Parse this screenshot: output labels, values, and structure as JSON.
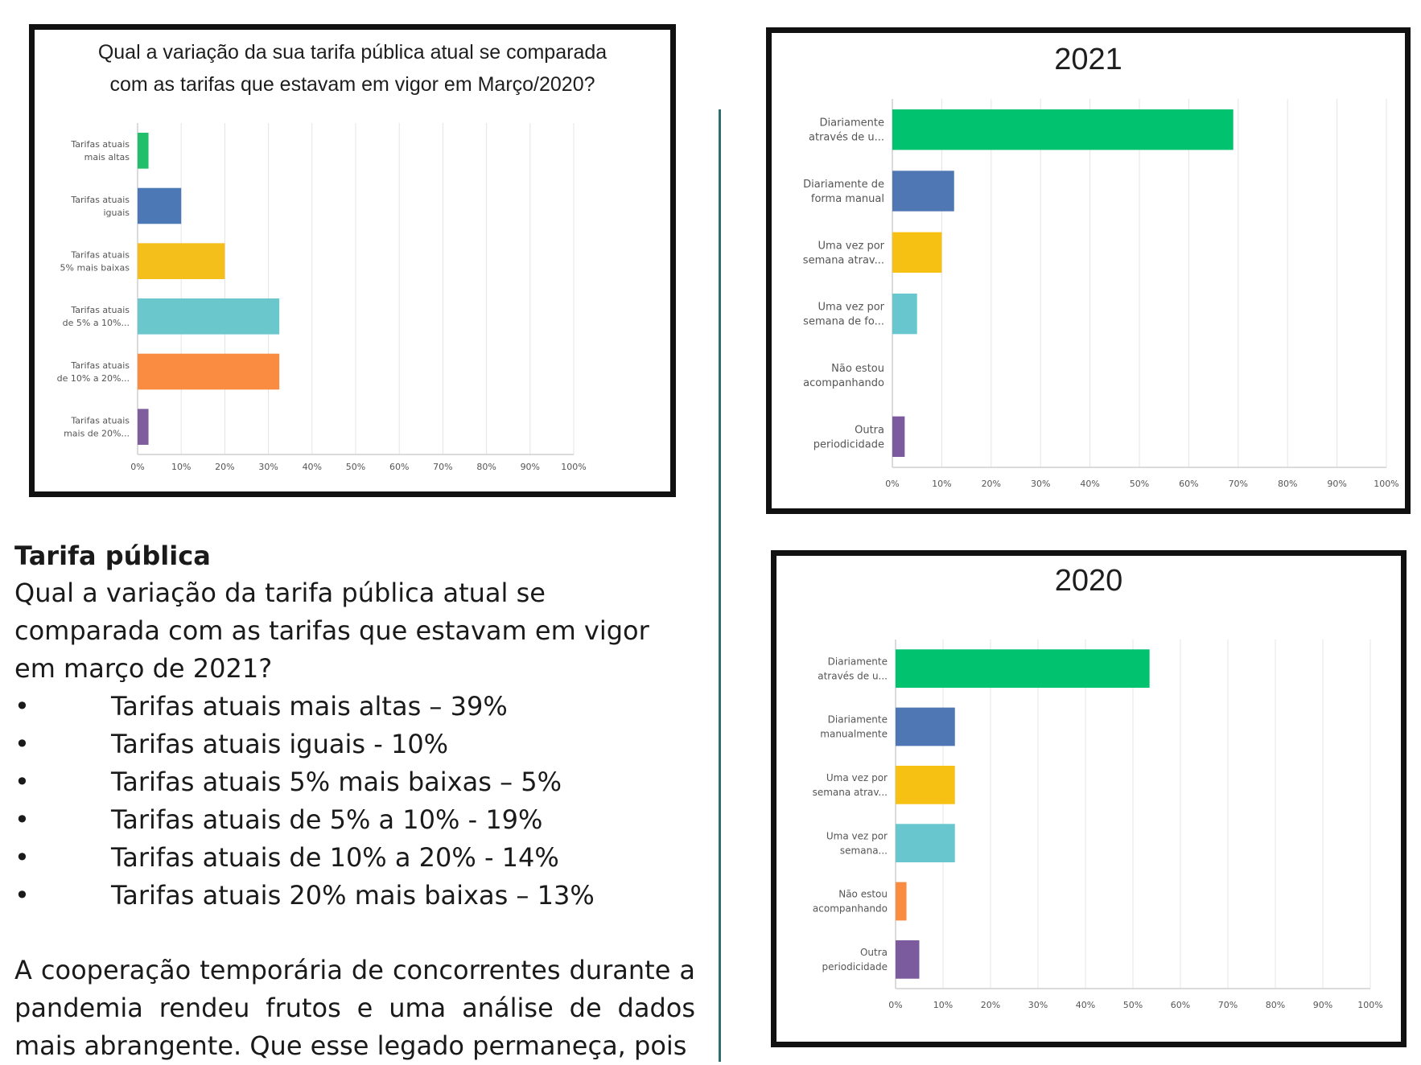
{
  "chart_data": [
    {
      "id": "chart1",
      "type": "bar",
      "orientation": "horizontal",
      "title_lines": [
        "Qual a variação da sua tarifa pública atual se comparada",
        "com as tarifas que estavam em vigor em Março/2020?"
      ],
      "categories": [
        [
          "Tarifas atuais",
          "mais altas"
        ],
        [
          "Tarifas atuais",
          "iguais"
        ],
        [
          "Tarifas atuais",
          "5% mais baixas"
        ],
        [
          "Tarifas atuais",
          "de 5% a 10%..."
        ],
        [
          "Tarifas atuais",
          "de 10% a 20%..."
        ],
        [
          "Tarifas atuais",
          "mais de 20%..."
        ]
      ],
      "values": [
        2.5,
        10,
        20,
        32.5,
        32.5,
        2.5
      ],
      "colors": [
        "#1fbf6b",
        "#4c78b5",
        "#f4be1b",
        "#6ac7cc",
        "#fa8c42",
        "#7e5e9c"
      ],
      "xlim": [
        0,
        100
      ],
      "ticks": [
        "0%",
        "10%",
        "20%",
        "30%",
        "40%",
        "50%",
        "60%",
        "70%",
        "80%",
        "90%",
        "100%"
      ]
    },
    {
      "id": "chart2021",
      "type": "bar",
      "orientation": "horizontal",
      "title": "2021",
      "categories": [
        [
          "Diariamente",
          "através de u..."
        ],
        [
          "Diariamente de",
          "forma manual"
        ],
        [
          "Uma vez por",
          "semana atrav..."
        ],
        [
          "Uma vez por",
          "semana de fo..."
        ],
        [
          "Não estou",
          "acompanhando"
        ],
        [
          "Outra",
          "periodicidade"
        ]
      ],
      "values": [
        69,
        12.5,
        10,
        5,
        0,
        2.5
      ],
      "colors": [
        "#00c26f",
        "#4f77b4",
        "#f6c113",
        "#68c7ce",
        "#fa8c42",
        "#7b5a9e"
      ],
      "xlim": [
        0,
        100
      ],
      "ticks": [
        "0%",
        "10%",
        "20%",
        "30%",
        "40%",
        "50%",
        "60%",
        "70%",
        "80%",
        "90%",
        "100%"
      ]
    },
    {
      "id": "chart2020",
      "type": "bar",
      "orientation": "horizontal",
      "title": "2020",
      "categories": [
        [
          "Diariamente",
          "através de u..."
        ],
        [
          "Diariamente",
          "manualmente"
        ],
        [
          "Uma vez por",
          "semana atrav..."
        ],
        [
          "Uma vez por",
          "semana..."
        ],
        [
          "Não estou",
          "acompanhando"
        ],
        [
          "Outra",
          "periodicidade"
        ]
      ],
      "values": [
        53.5,
        12.5,
        12.5,
        12.5,
        2.3,
        5
      ],
      "colors": [
        "#00c26f",
        "#4f77b4",
        "#f6c113",
        "#68c7ce",
        "#fa8c42",
        "#7b5a9e"
      ],
      "xlim": [
        0,
        100
      ],
      "ticks": [
        "0%",
        "10%",
        "20%",
        "30%",
        "40%",
        "50%",
        "60%",
        "70%",
        "80%",
        "90%",
        "100%"
      ]
    }
  ],
  "text": {
    "section_title": "Tarifa pública",
    "question": "Qual a variação da tarifa pública atual se comparada com as tarifas que estavam em vigor em março de 2021?",
    "bullet_symbol": "•",
    "bullets": [
      "Tarifas atuais mais altas – 39%",
      "Tarifas atuais iguais - 10%",
      "Tarifas atuais 5% mais baixas – 5%",
      "Tarifas atuais de 5% a 10% - 19%",
      "Tarifas atuais de 10% a 20% - 14%",
      "Tarifas atuais 20% mais baixas – 13%"
    ],
    "paragraph": "A cooperação temporária de concorrentes durante a pandemia rendeu frutos e uma análise de dados mais abrangente. Que esse legado permaneça, pois"
  }
}
